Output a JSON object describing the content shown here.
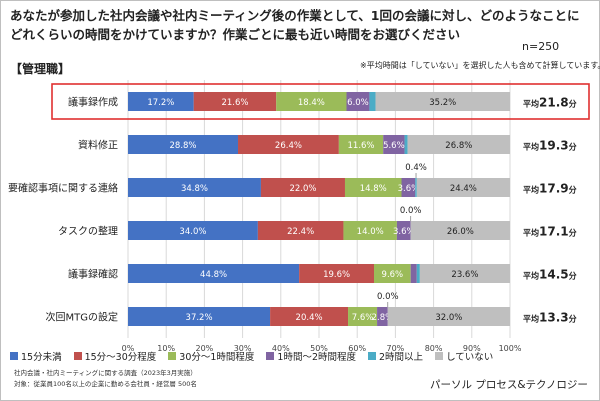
{
  "header": {
    "title_line1": "あなたが参加した社内会議や社内ミーティング後の作業として、1回の会議に対し、どのようなことに",
    "title_line2": "どれくらいの時間をかけていますか？作業ごとに最も近い時間をお選びください",
    "n_label": "n=250",
    "group_label": "【管理職】",
    "note": "※平均時間は「していない」を選択した人も含めて計算しています。"
  },
  "footer": {
    "source_line1": "社内会議・社内ミーティングに関する調査（2023年3月実施）",
    "source_line2": "対象：従業員100名以上の企業に勤める会社員・経営層 500名",
    "brand": "パーソル プロセス&テクノロジー"
  },
  "chart_data": {
    "type": "bar",
    "orientation": "horizontal",
    "stacked": true,
    "categories": [
      "議事録作成",
      "資料修正",
      "要確認事項に関する連絡",
      "タスクの整理",
      "議事録確認",
      "次回MTGの設定"
    ],
    "series": [
      {
        "name": "15分未満",
        "color": "#4472c4",
        "values": [
          17.2,
          28.8,
          34.8,
          34.0,
          44.8,
          37.2
        ]
      },
      {
        "name": "15分〜30分程度",
        "color": "#c0504d",
        "values": [
          21.6,
          26.4,
          22.0,
          22.4,
          19.6,
          20.4
        ]
      },
      {
        "name": "30分〜1時間程度",
        "color": "#9bbb59",
        "values": [
          18.4,
          11.6,
          14.8,
          14.0,
          9.6,
          7.6
        ]
      },
      {
        "name": "1時間〜2時間程度",
        "color": "#8064a2",
        "values": [
          6.0,
          5.6,
          3.6,
          3.6,
          1.6,
          2.8
        ]
      },
      {
        "name": "2時間以上",
        "color": "#4bacc6",
        "values": [
          1.6,
          0.8,
          0.4,
          0.0,
          0.8,
          0.0
        ]
      },
      {
        "name": "していない",
        "color": "#bfbfbf",
        "values": [
          35.2,
          26.8,
          24.4,
          26.0,
          23.6,
          32.0
        ]
      }
    ],
    "averages": [
      {
        "prefix": "平均",
        "value": "21.8",
        "unit": "分"
      },
      {
        "prefix": "平均",
        "value": "19.3",
        "unit": "分"
      },
      {
        "prefix": "平均",
        "value": "17.9",
        "unit": "分"
      },
      {
        "prefix": "平均",
        "value": "17.1",
        "unit": "分"
      },
      {
        "prefix": "平均",
        "value": "14.5",
        "unit": "分"
      },
      {
        "prefix": "平均",
        "value": "13.3",
        "unit": "分"
      }
    ],
    "xlim": [
      0,
      100
    ],
    "xticks": [
      "0%",
      "10%",
      "20%",
      "30%",
      "40%",
      "50%",
      "60%",
      "70%",
      "80%",
      "90%",
      "100%"
    ],
    "grid": true,
    "legend": "bottom",
    "highlight_category": "議事録作成",
    "highlight_color": "#e03030"
  }
}
